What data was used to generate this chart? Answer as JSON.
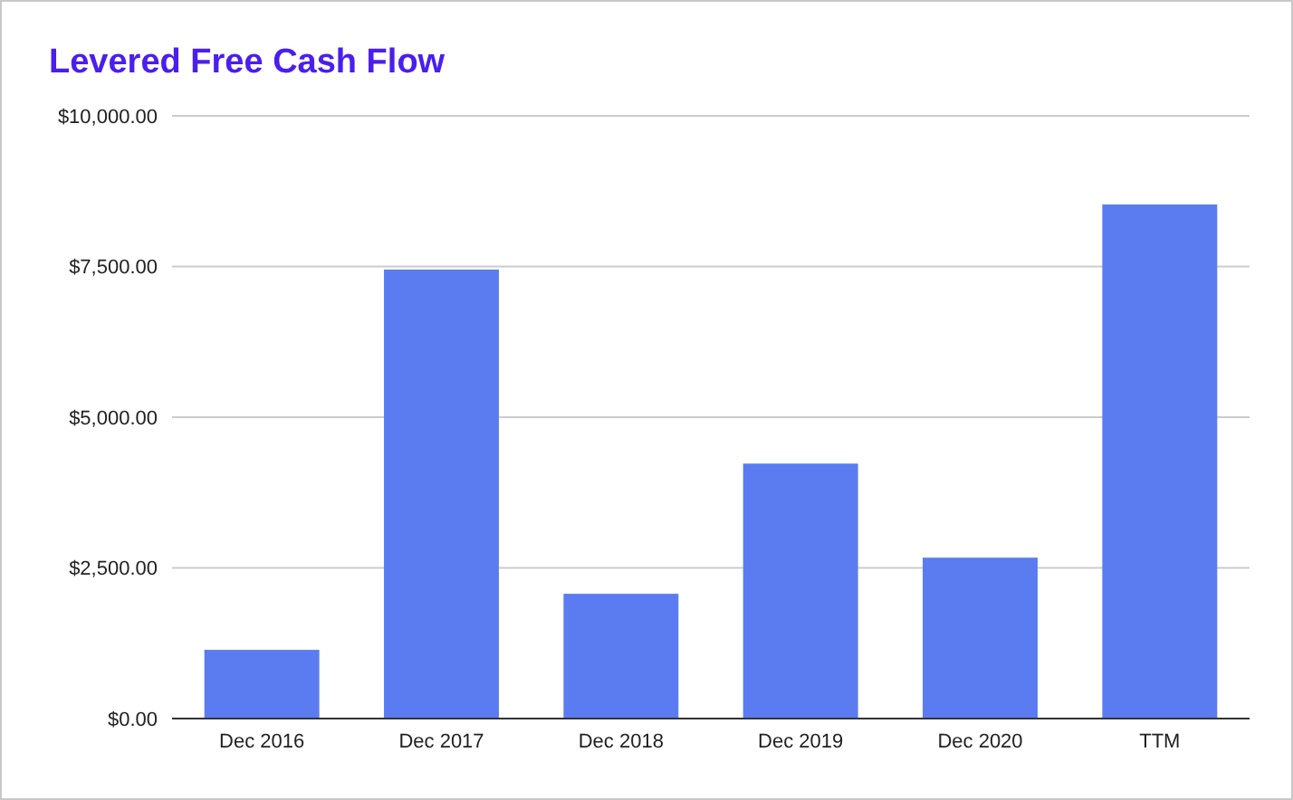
{
  "chart_data": {
    "type": "bar",
    "title": "Levered Free Cash Flow",
    "categories": [
      "Dec 2016",
      "Dec 2017",
      "Dec 2018",
      "Dec 2019",
      "Dec 2020",
      "TTM"
    ],
    "values": [
      1140,
      7450,
      2070,
      4230,
      2670,
      8530
    ],
    "color": "#5b7cf0",
    "ylim": [
      0,
      10000
    ],
    "yticks": [
      {
        "value": 0,
        "label": "$0.00"
      },
      {
        "value": 2500,
        "label": "$2,500.00"
      },
      {
        "value": 5000,
        "label": "$5,000.00"
      },
      {
        "value": 7500,
        "label": "$7,500.00"
      },
      {
        "value": 10000,
        "label": "$10,000.00"
      }
    ],
    "grid": "y"
  }
}
